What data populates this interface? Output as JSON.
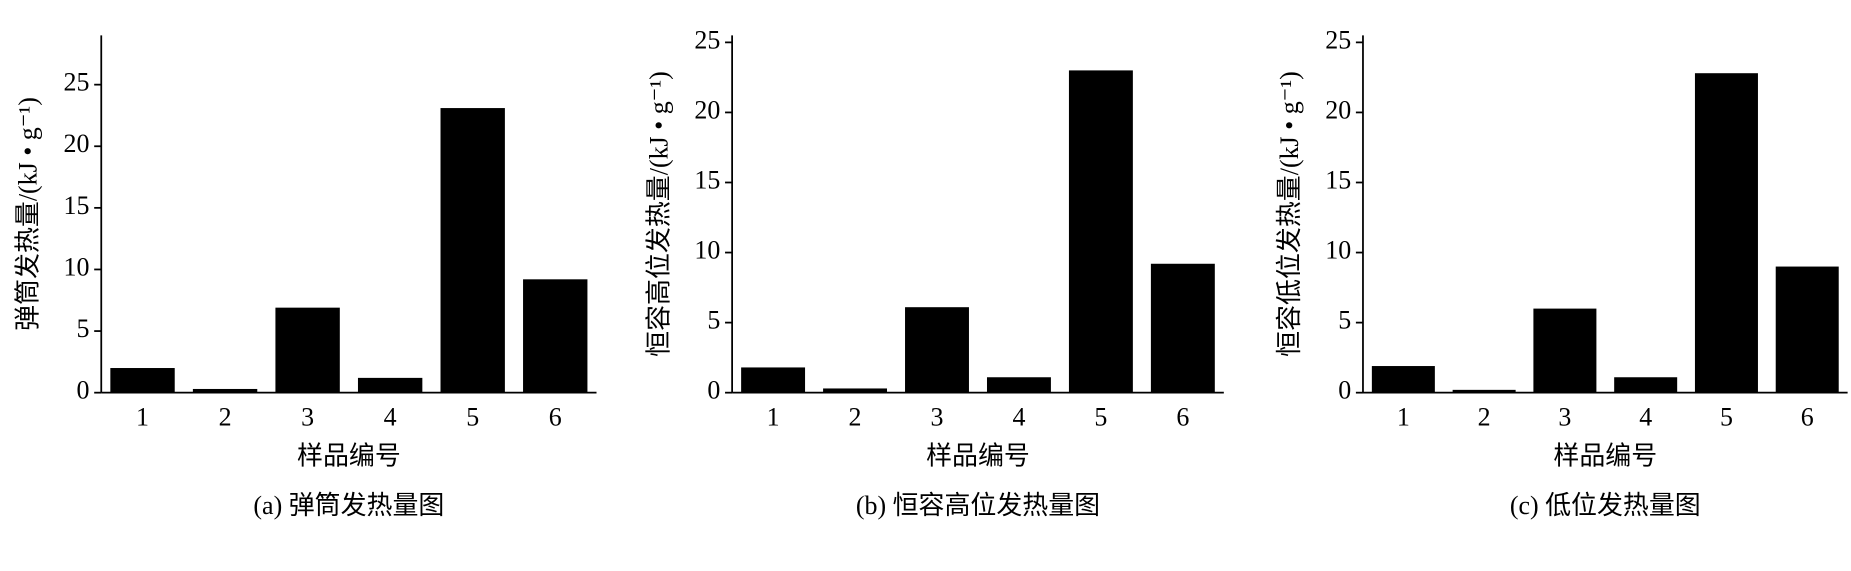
{
  "chart_data": [
    {
      "type": "bar",
      "title": "(a) 弹筒发热量图",
      "x_label": "样品编号",
      "y_label": "弹筒发热量/(kJ • g⁻¹)",
      "categories": [
        "1",
        "2",
        "3",
        "4",
        "5",
        "6"
      ],
      "values": [
        2.0,
        0.3,
        6.9,
        1.2,
        23.1,
        9.2
      ],
      "color": "#000000",
      "ylim": [
        0,
        29
      ],
      "yticks": [
        0,
        5,
        10,
        15,
        20,
        25
      ]
    },
    {
      "type": "bar",
      "title": "(b) 恒容高位发热量图",
      "x_label": "样品编号",
      "y_label": "恒容高位发热量/(kJ • g⁻¹)",
      "categories": [
        "1",
        "2",
        "3",
        "4",
        "5",
        "6"
      ],
      "values": [
        1.8,
        0.3,
        6.1,
        1.1,
        23.0,
        9.2
      ],
      "color": "#000000",
      "ylim": [
        0,
        25.5
      ],
      "yticks": [
        0,
        5,
        10,
        15,
        20,
        25
      ]
    },
    {
      "type": "bar",
      "title": "(c) 低位发热量图",
      "x_label": "样品编号",
      "y_label": "恒容低位发热量/(kJ • g⁻¹)",
      "categories": [
        "1",
        "2",
        "3",
        "4",
        "5",
        "6"
      ],
      "values": [
        1.9,
        0.2,
        6.0,
        1.1,
        22.8,
        9.0
      ],
      "color": "#000000",
      "ylim": [
        0,
        25.5
      ],
      "yticks": [
        0,
        5,
        10,
        15,
        20,
        25
      ]
    }
  ]
}
